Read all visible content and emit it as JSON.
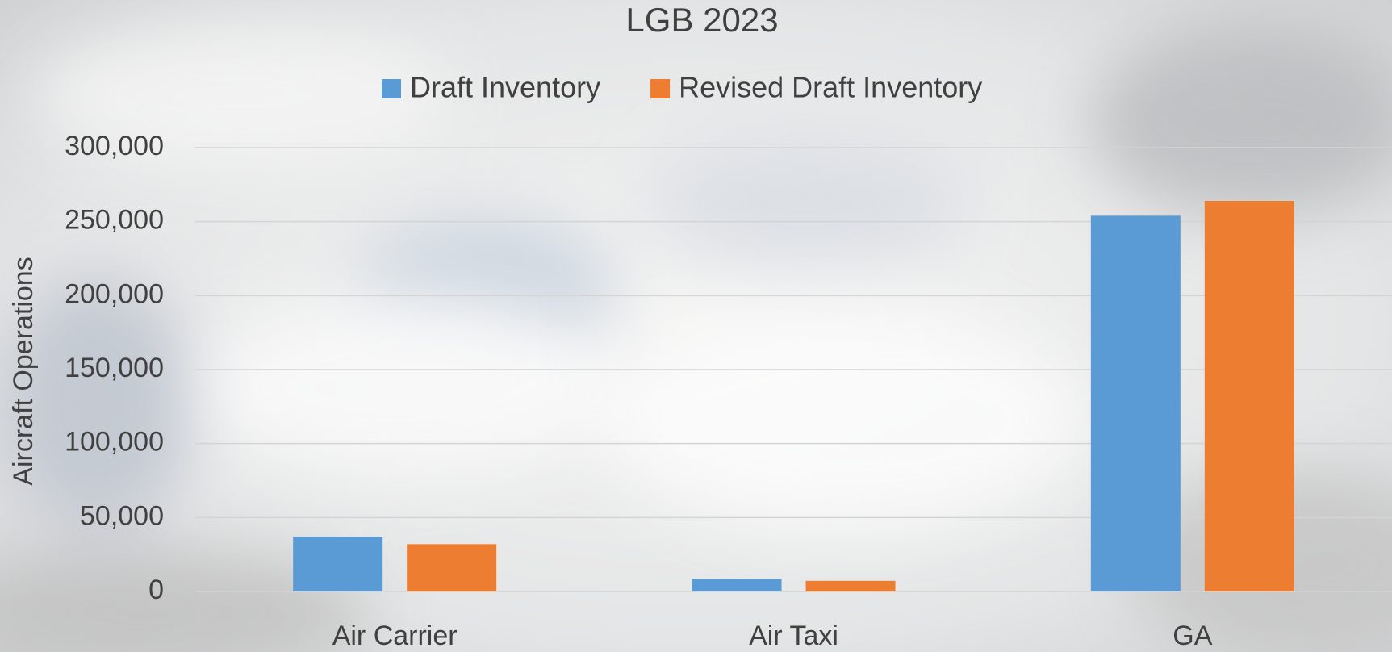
{
  "chart_data": {
    "type": "bar",
    "title": "LGB 2023",
    "y_label": "Aircraft Operations",
    "categories": [
      "Air Carrier",
      "Air Taxi",
      "GA"
    ],
    "series": [
      {
        "name": "Draft Inventory",
        "color": "#5b9bd5",
        "values": [
          37000,
          8500,
          254000
        ]
      },
      {
        "name": "Revised Draft Inventory",
        "color": "#ed7d31",
        "values": [
          32000,
          7200,
          264000
        ]
      }
    ],
    "ylim": [
      0,
      300000
    ],
    "yticks": [
      0,
      {
        "value": 50000,
        "label": "50,000"
      },
      {
        "value": 100000,
        "label": "100,000"
      },
      {
        "value": 150000,
        "label": "150,000"
      },
      {
        "value": 200000,
        "label": "200,000"
      },
      {
        "value": 250000,
        "label": "250,000"
      },
      {
        "value": 300000,
        "label": "300,000"
      }
    ],
    "grid": true,
    "legend": "top"
  }
}
